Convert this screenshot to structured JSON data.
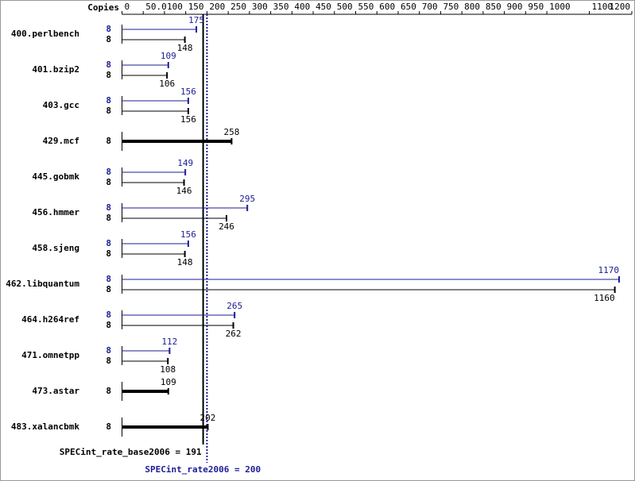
{
  "chart_data": {
    "type": "bar",
    "axis_label": "Copies",
    "categories": [
      "400.perlbench",
      "401.bzip2",
      "403.gcc",
      "429.mcf",
      "445.gobmk",
      "456.hmmer",
      "458.sjeng",
      "462.libquantum",
      "464.h264ref",
      "471.omnetpp",
      "473.astar",
      "483.xalancbmk"
    ],
    "series": [
      {
        "name": "SPECint_rate2006",
        "color": "#1c1c96",
        "copies": [
          8,
          8,
          8,
          null,
          8,
          8,
          8,
          8,
          8,
          8,
          null,
          null
        ],
        "values": [
          175,
          109,
          156,
          null,
          149,
          295,
          156,
          1170,
          265,
          112,
          null,
          null
        ]
      },
      {
        "name": "SPECint_rate_base2006",
        "color": "#000000",
        "copies": [
          8,
          8,
          8,
          8,
          8,
          8,
          8,
          8,
          8,
          8,
          8,
          8
        ],
        "values": [
          148,
          106,
          156,
          258,
          146,
          246,
          148,
          1160,
          262,
          108,
          109,
          202
        ]
      }
    ],
    "reference_lines": [
      {
        "value": 191,
        "label": "SPECint_rate_base2006 = 191",
        "color": "#000000",
        "style": "solid"
      },
      {
        "value": 200,
        "label": "SPECint_rate2006 = 200",
        "color": "#1c1c96",
        "style": "dotted"
      }
    ],
    "xlim": [
      0,
      1200
    ],
    "xticks": [
      0,
      {
        "value": 50,
        "label": "50.0"
      },
      100,
      150,
      200,
      250,
      300,
      350,
      400,
      450,
      500,
      550,
      600,
      650,
      700,
      750,
      800,
      850,
      900,
      950,
      1000,
      1100,
      1200
    ]
  }
}
